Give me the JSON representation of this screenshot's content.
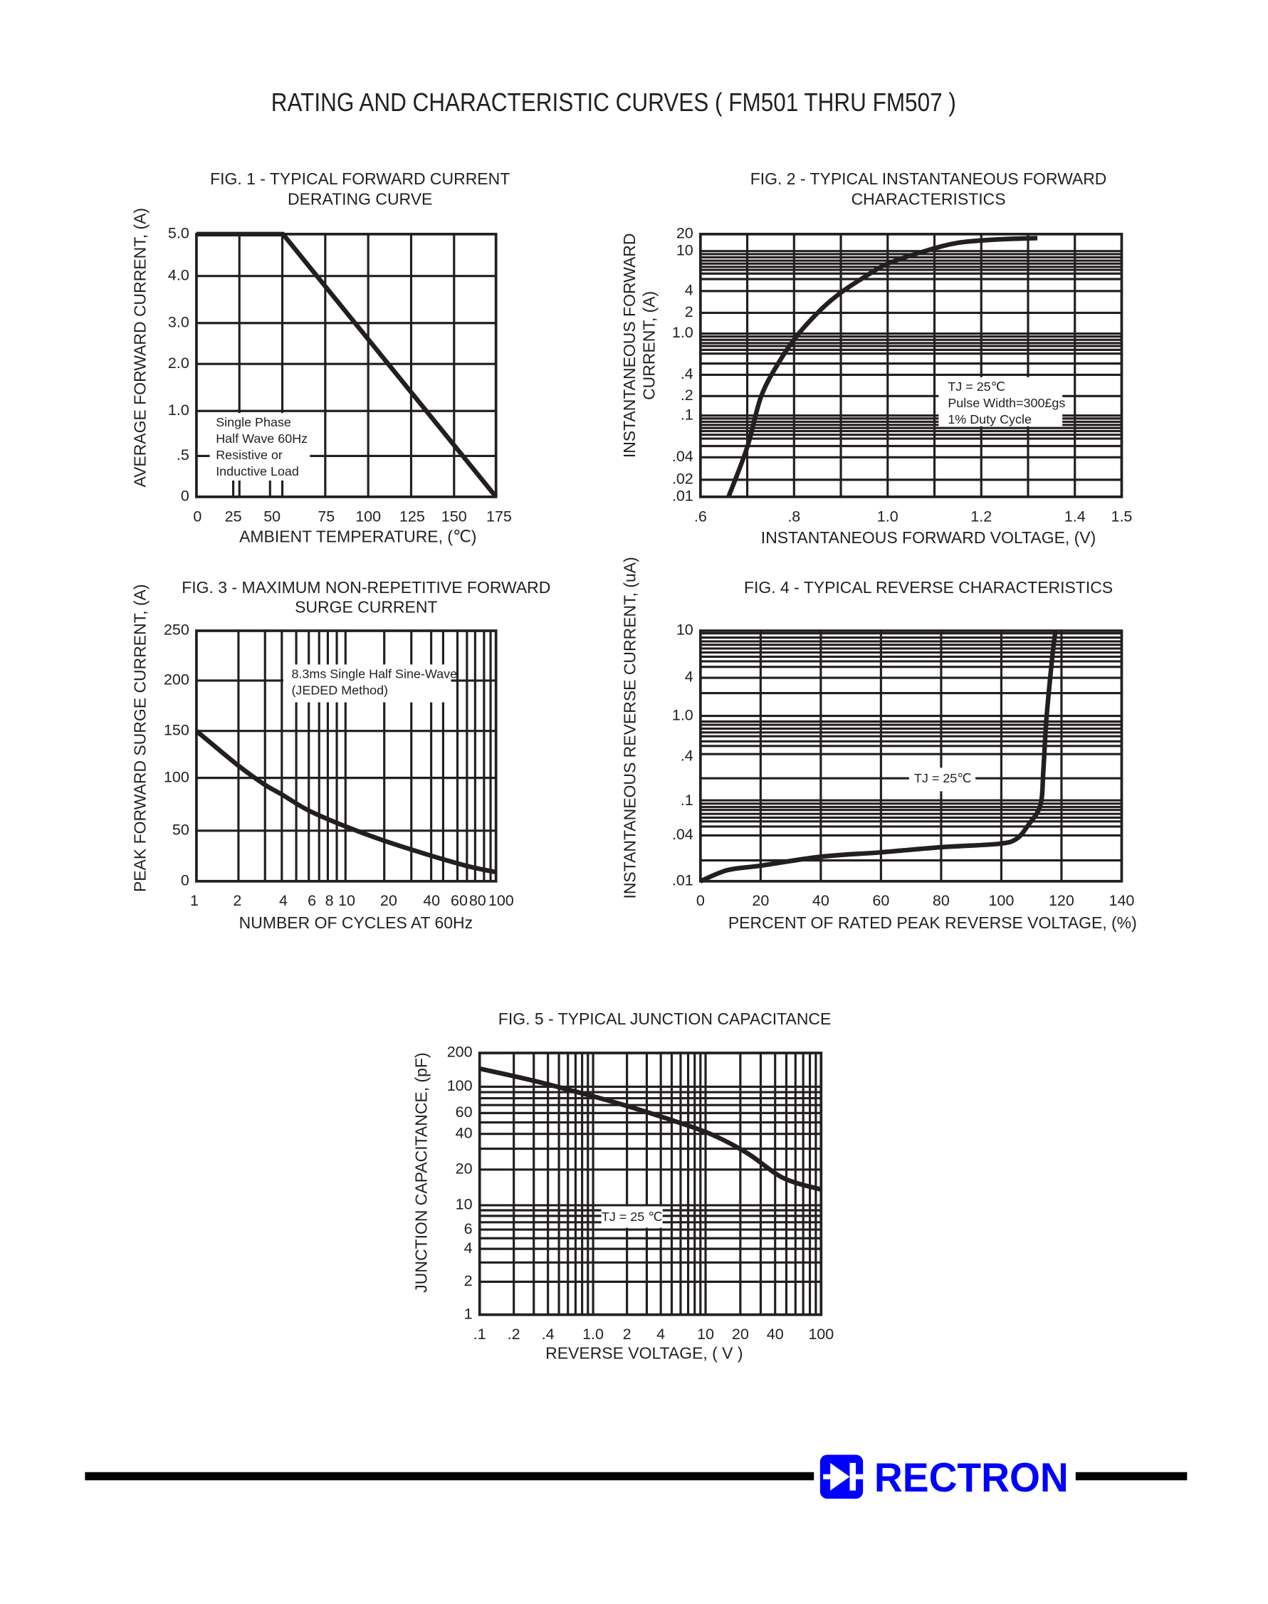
{
  "page": {
    "title": "RATING AND CHARACTERISTIC CURVES ( FM501 THRU FM507 )"
  },
  "logo": {
    "text": "RECTRON",
    "color": "#0000FF",
    "icon": "diode-icon"
  },
  "chart_data": [
    {
      "type": "line",
      "title": [
        "FIG. 1 - TYPICAL FORWARD CURRENT",
        "DERATING CURVE"
      ],
      "xlabel": "AMBIENT TEMPERATURE, (℃)",
      "ylabel": [
        "AVERAGE FORWARD  CURRENT, (A)"
      ],
      "x_ticks": [
        "0",
        "25",
        "50",
        "75",
        "100",
        "125",
        "150",
        "175"
      ],
      "y_ticks": [
        "5.0",
        "4.0",
        "3.0",
        "2.0",
        "1.0",
        ".5",
        "0"
      ],
      "xlim": [
        0,
        175
      ],
      "ylim": [
        0,
        5
      ],
      "grid": true,
      "annotation": [
        "Single Phase",
        "Half Wave 60Hz",
        "Resistive or",
        "Inductive Load"
      ],
      "series": [
        {
          "x": [
            0,
            55,
            175
          ],
          "y": [
            5,
            5,
            0
          ]
        }
      ]
    },
    {
      "type": "line",
      "title": [
        "FIG. 2 - TYPICAL INSTANTANEOUS FORWARD",
        "CHARACTERISTICS"
      ],
      "xlabel": "INSTANTANEOUS FORWARD VOLTAGE, (V)",
      "ylabel": [
        "INSTANTANEOUS FORWARD",
        "CURRENT, (A)"
      ],
      "x_ticks": [
        ".6",
        ".8",
        "1.0",
        "1.2",
        "1.4",
        "1.5"
      ],
      "y_ticks": [
        "20",
        "10",
        "4",
        "2",
        "1.0",
        ".4",
        ".2",
        ".1",
        ".04",
        ".02",
        ".01"
      ],
      "xlim": [
        0.6,
        1.5
      ],
      "ylim": [
        0.01,
        20
      ],
      "y_scale": "log",
      "grid": true,
      "annotation": [
        "TJ = 25℃",
        "Pulse Width=300£gs",
        "1% Duty Cycle"
      ],
      "series": [
        {
          "x": [
            0.66,
            0.7,
            0.73,
            0.77,
            0.81,
            0.86,
            0.9,
            0.95,
            1.0,
            1.08,
            1.15,
            1.23,
            1.32
          ],
          "y": [
            0.01,
            0.05,
            0.2,
            0.55,
            1.0,
            2.3,
            3.8,
            5.5,
            7.5,
            10,
            14,
            16,
            17
          ]
        }
      ]
    },
    {
      "type": "line",
      "title": [
        "FIG. 3 - MAXIMUM NON-REPETITIVE FORWARD",
        "SURGE CURRENT"
      ],
      "xlabel": "NUMBER OF CYCLES AT 60Hz",
      "ylabel": [
        "PEAK FORWARD SURGE CURRENT, (A)"
      ],
      "x_ticks": [
        "1",
        "2",
        "4",
        "6",
        "8",
        "10",
        "20",
        "40",
        "60",
        "80",
        "100"
      ],
      "y_ticks": [
        "250",
        "200",
        "150",
        "100",
        "50",
        "0"
      ],
      "xlim": [
        1,
        100
      ],
      "ylim": [
        0,
        250
      ],
      "x_scale": "log",
      "grid": true,
      "annotation": [
        "8.3ms Single Half Sine-Wave",
        "(JEDED Method)"
      ],
      "series": [
        {
          "x": [
            1,
            2,
            3,
            4,
            6,
            10,
            20,
            35,
            50,
            75,
            100
          ],
          "y": [
            150,
            113,
            94,
            84,
            69,
            54,
            40,
            28,
            21,
            14,
            9
          ]
        }
      ]
    },
    {
      "type": "line",
      "title": [
        "FIG. 4 - TYPICAL REVERSE CHARACTERISTICS"
      ],
      "xlabel": "PERCENT OF RATED PEAK REVERSE VOLTAGE, (%)",
      "ylabel": [
        "INSTANTANEOUS REVERSE CURRENT, (uA)"
      ],
      "x_ticks": [
        "0",
        "20",
        "40",
        "60",
        "80",
        "100",
        "120",
        "140"
      ],
      "y_ticks": [
        "10",
        "4",
        "1.0",
        ".4",
        ".1",
        ".04",
        ".01"
      ],
      "xlim": [
        0,
        140
      ],
      "ylim": [
        0.01,
        10
      ],
      "y_scale": "log",
      "grid": true,
      "annotation": [
        "TJ = 25℃"
      ],
      "series": [
        {
          "x": [
            0,
            9,
            20,
            40,
            60,
            80,
            99,
            105,
            109,
            113,
            114,
            115,
            117,
            118
          ],
          "y": [
            0.01,
            0.014,
            0.016,
            0.021,
            0.024,
            0.028,
            0.031,
            0.036,
            0.053,
            0.09,
            0.27,
            0.94,
            6.2,
            10
          ]
        }
      ]
    },
    {
      "type": "line",
      "title": [
        "FIG. 5 - TYPICAL JUNCTION CAPACITANCE"
      ],
      "xlabel": "REVERSE VOLTAGE, ( V )",
      "ylabel": [
        "JUNCTION CAPACITANCE, (pF)"
      ],
      "x_ticks": [
        ".1",
        ".2",
        ".4",
        "1.0",
        "2",
        "4",
        "10",
        "20",
        "40",
        "100"
      ],
      "y_ticks": [
        "200",
        "100",
        "60",
        "40",
        "20",
        "10",
        "6",
        "4",
        "2",
        "1"
      ],
      "xlim": [
        0.1,
        100
      ],
      "ylim": [
        1,
        200
      ],
      "x_scale": "log",
      "y_scale": "log",
      "grid": true,
      "annotation": [
        "TJ = 25 ℃"
      ],
      "series": [
        {
          "x": [
            0.1,
            0.3,
            1,
            2.2,
            4.5,
            11,
            23,
            47,
            100
          ],
          "y": [
            145,
            113,
            83,
            67,
            54,
            40,
            27.5,
            17,
            13.6
          ]
        }
      ]
    }
  ]
}
